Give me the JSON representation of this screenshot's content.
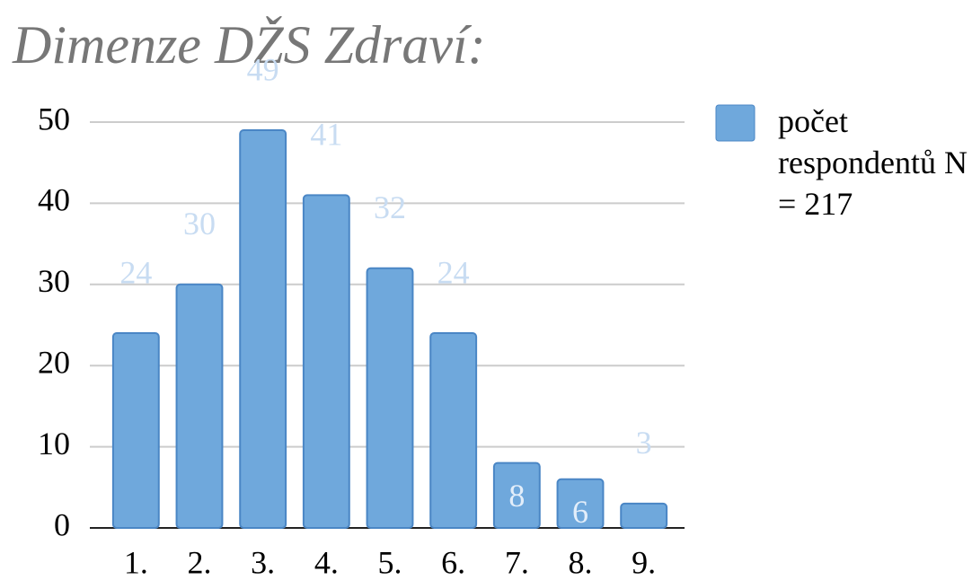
{
  "chart_data": {
    "type": "bar",
    "title": "Dimenze DŽS Zdraví:",
    "categories": [
      "1.",
      "2.",
      "3.",
      "4.",
      "5.",
      "6.",
      "7.",
      "8.",
      "9."
    ],
    "series": [
      {
        "name": "počet respondentů N = 217",
        "color": "#6fa8dc",
        "values": [
          24,
          30,
          49,
          41,
          32,
          24,
          8,
          6,
          3
        ]
      }
    ],
    "ylim": [
      0,
      50
    ],
    "yticks": [
      0,
      10,
      20,
      30,
      40,
      50
    ],
    "grid": true,
    "legend": "right"
  }
}
